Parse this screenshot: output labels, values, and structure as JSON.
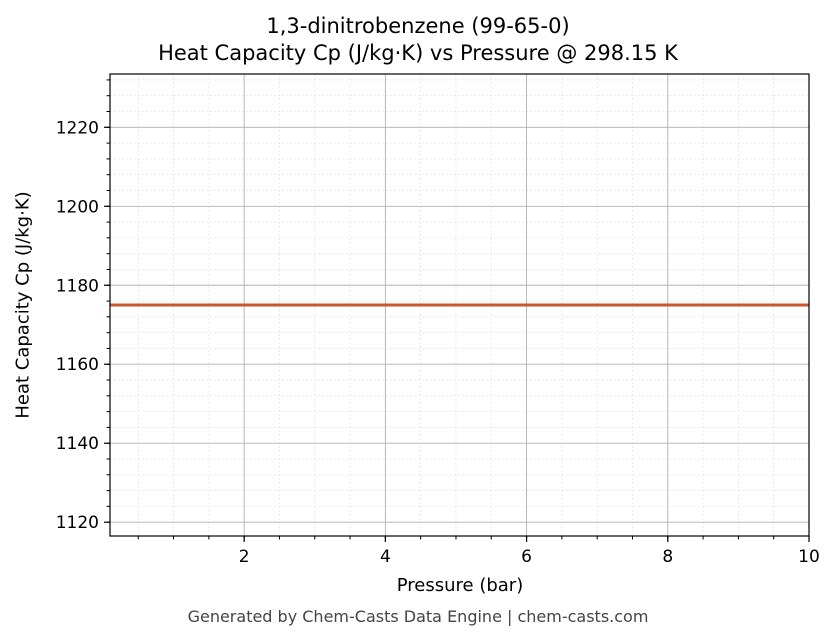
{
  "chart_data": {
    "type": "line",
    "title": "1,3-dinitrobenzene (99-65-0)",
    "subtitle": "Heat Capacity Cp (J/kg·K) vs Pressure @ 298.15 K",
    "xlabel": "Pressure (bar)",
    "ylabel": "Heat Capacity Cp (J/kg·K)",
    "xlim": [
      0.1,
      10
    ],
    "ylim": [
      1116.5,
      1233.5
    ],
    "xticks": [
      2,
      4,
      6,
      8,
      10
    ],
    "yticks": [
      1120,
      1140,
      1160,
      1180,
      1200,
      1220
    ],
    "grid": true,
    "series": [
      {
        "x": [
          0.1,
          10
        ],
        "y": [
          1175,
          1175
        ],
        "color": "#c8582a"
      }
    ]
  },
  "footer": "Generated by Chem-Casts Data Engine | chem-casts.com"
}
